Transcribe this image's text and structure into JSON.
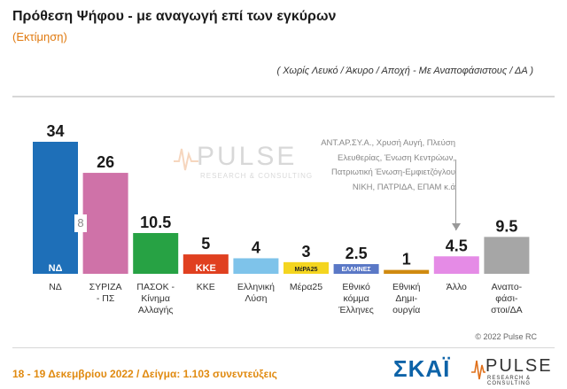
{
  "header": {
    "title": "Πρόθεση Ψήφου - με αναγωγή επί των εγκύρων",
    "subtitle": "(Εκτίμηση)",
    "note": "( Χωρίς Λευκό / Άκυρο / Αποχή  -  Με Αναποφάσιστους / ΔΑ )"
  },
  "watermark": {
    "name": "PULSE",
    "tagline": "RESEARCH & CONSULTING"
  },
  "annotation": {
    "lines": [
      "ΑΝΤ.ΑΡ.ΣΥ.Α., Χρυσή Αυγή, Πλεύση",
      "Ελευθερίας, Ένωση Κεντρώων,",
      "Πατριωτική Ένωση-Εμφιετζόγλου",
      "ΝΙΚΗ, ΠΑΤΡΙΔΑ, ΕΠΑΜ    κ.ά"
    ]
  },
  "bar_inner_label": "8",
  "chart_data": {
    "type": "bar",
    "title": "Πρόθεση Ψήφου - με αναγωγή επί των εγκύρων",
    "subtitle": "(Εκτίμηση)",
    "categories": [
      [
        "ΝΔ"
      ],
      [
        "ΣΥΡΙΖΑ",
        "- ΠΣ"
      ],
      [
        "ΠΑΣΟΚ -",
        "Κίνημα",
        "Αλλαγής"
      ],
      [
        "ΚΚΕ"
      ],
      [
        "Ελληνική",
        "Λύση"
      ],
      [
        "Μέρα25"
      ],
      [
        "Εθνικό",
        "κόμμα",
        "Έλληνες"
      ],
      [
        "Εθνική",
        "Δημι-",
        "ουργία"
      ],
      [
        "Άλλο"
      ],
      [
        "Αναπο-",
        "φάσι-",
        "στοι/ΔΑ"
      ]
    ],
    "values": [
      34,
      26,
      10.5,
      5,
      4,
      3,
      2.5,
      1,
      4.5,
      9.5
    ],
    "value_labels": [
      "34",
      "26",
      "10.5",
      "5",
      "4",
      "3",
      "2.5",
      "1",
      "4.5",
      "9.5"
    ],
    "logos": [
      "ΝΔ",
      "",
      "",
      "ΚΚΕ",
      "",
      "ΜέΡΑ25",
      "ΕΛΛΗΝΕΣ",
      "",
      "",
      ""
    ],
    "colors": [
      "#1e6fb8",
      "#cf72a8",
      "#27a244",
      "#e04020",
      "#7ec3ea",
      "#f4d520",
      "#5a78c6",
      "#d08a10",
      "#e58be6",
      "#a6a6a6"
    ],
    "ylim": [
      0,
      34
    ],
    "grid": false,
    "legend": "none"
  },
  "copyright": "© 2022 Pulse RC",
  "footer": {
    "text": "18 - 19  Δεκεμβρίου  2022  /  Δείγμα:  1.103  συνεντεύξεις",
    "channel": "ΣΚΑΪ",
    "brand": "PULSE",
    "brand_sub": "RESEARCH & CONSULTING"
  }
}
